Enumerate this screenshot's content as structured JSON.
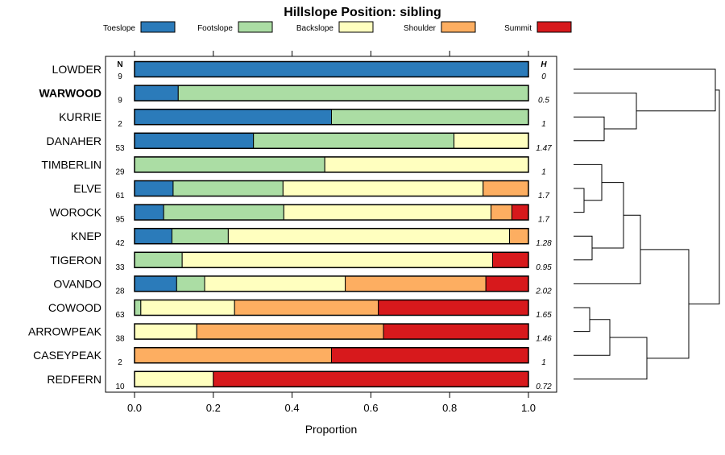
{
  "chart_data": {
    "type": "stacked-bar-horizontal",
    "title": "Hillslope Position: sibling",
    "xlabel": "Proportion",
    "xlim": [
      0,
      1
    ],
    "xticks": [
      "0.0",
      "0.2",
      "0.4",
      "0.6",
      "0.8",
      "1.0"
    ],
    "n_header": "N",
    "h_header": "H",
    "legend": [
      {
        "name": "Toeslope",
        "color": "#2b7bba"
      },
      {
        "name": "Footslope",
        "color": "#abdda4"
      },
      {
        "name": "Backslope",
        "color": "#ffffbf"
      },
      {
        "name": "Shoulder",
        "color": "#fdae61"
      },
      {
        "name": "Summit",
        "color": "#d7191c"
      }
    ],
    "rows": [
      {
        "label": "LOWDER",
        "n": "9",
        "h": "0",
        "bold": false,
        "values": [
          1.0,
          0,
          0,
          0,
          0
        ]
      },
      {
        "label": "WARWOOD",
        "n": "9",
        "h": "0.5",
        "bold": true,
        "values": [
          0.111,
          0.889,
          0,
          0,
          0
        ]
      },
      {
        "label": "KURRIE",
        "n": "2",
        "h": "1",
        "bold": false,
        "values": [
          0.5,
          0.5,
          0,
          0,
          0
        ]
      },
      {
        "label": "DANAHER",
        "n": "53",
        "h": "1.47",
        "bold": false,
        "values": [
          0.302,
          0.509,
          0.189,
          0,
          0
        ]
      },
      {
        "label": "TIMBERLIN",
        "n": "29",
        "h": "1",
        "bold": false,
        "values": [
          0,
          0.483,
          0.517,
          0,
          0
        ]
      },
      {
        "label": "ELVE",
        "n": "61",
        "h": "1.7",
        "bold": false,
        "values": [
          0.098,
          0.279,
          0.508,
          0.115,
          0
        ]
      },
      {
        "label": "WOROCK",
        "n": "95",
        "h": "1.7",
        "bold": false,
        "values": [
          0.074,
          0.305,
          0.526,
          0.053,
          0.042
        ]
      },
      {
        "label": "KNEP",
        "n": "42",
        "h": "1.28",
        "bold": false,
        "values": [
          0.095,
          0.143,
          0.714,
          0.048,
          0
        ]
      },
      {
        "label": "TIGERON",
        "n": "33",
        "h": "0.95",
        "bold": false,
        "values": [
          0,
          0.121,
          0.788,
          0,
          0.091
        ]
      },
      {
        "label": "OVANDO",
        "n": "28",
        "h": "2.02",
        "bold": false,
        "values": [
          0.107,
          0.071,
          0.357,
          0.357,
          0.108
        ]
      },
      {
        "label": "COWOOD",
        "n": "63",
        "h": "1.65",
        "bold": false,
        "values": [
          0,
          0.016,
          0.238,
          0.365,
          0.381
        ]
      },
      {
        "label": "ARROWPEAK",
        "n": "38",
        "h": "1.46",
        "bold": false,
        "values": [
          0,
          0,
          0.158,
          0.474,
          0.368
        ]
      },
      {
        "label": "CASEYPEAK",
        "n": "2",
        "h": "1",
        "bold": false,
        "values": [
          0,
          0,
          0,
          0.5,
          0.5
        ]
      },
      {
        "label": "REDFERN",
        "n": "10",
        "h": "0.72",
        "bold": false,
        "values": [
          0,
          0,
          0.2,
          0,
          0.8
        ]
      }
    ],
    "dendrogram": {
      "leaf_order": [
        "LOWDER",
        "WARWOOD",
        "KURRIE",
        "DANAHER",
        "TIMBERLIN",
        "ELVE",
        "WOROCK",
        "KNEP",
        "TIGERON",
        "OVANDO",
        "COWOOD",
        "ARROWPEAK",
        "CASEYPEAK",
        "REDFERN"
      ]
    }
  }
}
